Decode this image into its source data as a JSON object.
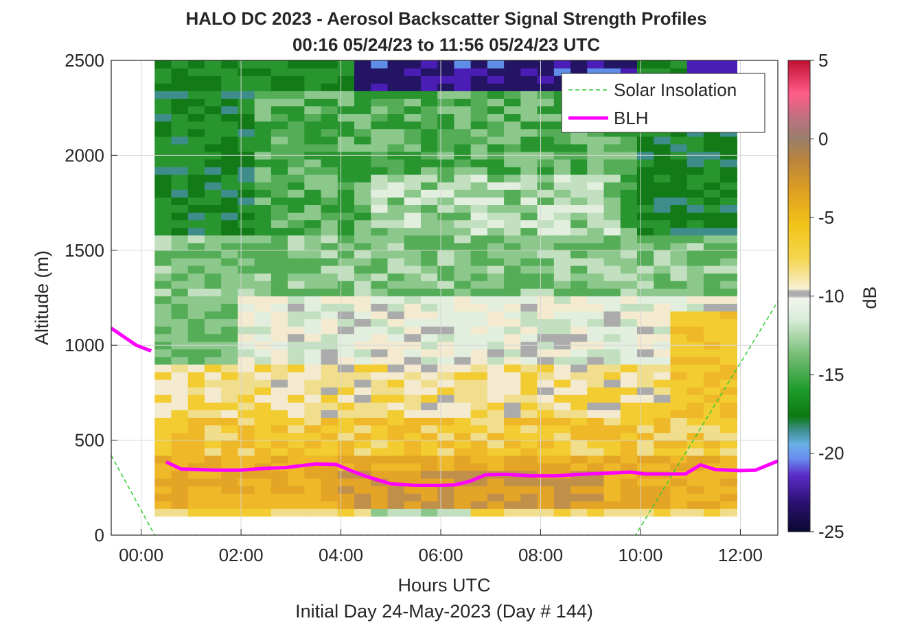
{
  "chart_data": {
    "type": "heatmap",
    "title": "HALO DC 2023 - Aerosol Backscatter Signal Strength Profiles",
    "subtitle": "00:16 05/24/23 to 11:56 05/24/23  UTC",
    "xlabel": "Hours UTC",
    "xlabel2": "Initial Day 24-May-2023 (Day # 144)",
    "ylabel": "Altitude (m)",
    "colorbar_label": "dB",
    "xlim": [
      -0.6,
      12.75
    ],
    "ylim": [
      0,
      2500
    ],
    "clim": [
      -25,
      5
    ],
    "grid": true,
    "legend_position": "top-right",
    "x_ticks": [
      {
        "value": 0,
        "label": "00:00"
      },
      {
        "value": 2,
        "label": "02:00"
      },
      {
        "value": 4,
        "label": "04:00"
      },
      {
        "value": 6,
        "label": "06:00"
      },
      {
        "value": 8,
        "label": "08:00"
      },
      {
        "value": 10,
        "label": "10:00"
      },
      {
        "value": 12,
        "label": "12:00"
      }
    ],
    "y_ticks": [
      {
        "value": 0,
        "label": "0"
      },
      {
        "value": 500,
        "label": "500"
      },
      {
        "value": 1000,
        "label": "1000"
      },
      {
        "value": 1500,
        "label": "1500"
      },
      {
        "value": 2000,
        "label": "2000"
      },
      {
        "value": 2500,
        "label": "2500"
      }
    ],
    "colorbar_ticks": [
      {
        "value": 5,
        "label": "5"
      },
      {
        "value": 0,
        "label": "0"
      },
      {
        "value": -5,
        "label": "-5"
      },
      {
        "value": -10,
        "label": "-10"
      },
      {
        "value": -15,
        "label": "-15"
      },
      {
        "value": -20,
        "label": "-20"
      },
      {
        "value": -25,
        "label": "-25"
      }
    ],
    "heatmap": {
      "x_start": 0.27,
      "x_end": 11.93,
      "columns": 35,
      "y_start": 100,
      "y_end": 2500,
      "rows": 60
    },
    "series": [
      {
        "name": "Solar Insolation",
        "color": "#33cc33",
        "style": "dashed",
        "x": [
          -0.6,
          0.27,
          9.9,
          12.75
        ],
        "y": [
          420,
          0,
          0,
          1230
        ]
      },
      {
        "name": "BLH",
        "color": "#ff00ff",
        "style": "solid",
        "x": [
          -0.6,
          -0.1,
          0.2
        ],
        "y": [
          1090,
          1000,
          970
        ]
      },
      {
        "name": "",
        "color": "#ff00ff",
        "style": "solid",
        "x": [
          0.5,
          0.8,
          1.5,
          2.0,
          2.5,
          2.9,
          3.5,
          3.9,
          4.2,
          4.5,
          5.0,
          5.5,
          6.0,
          6.3,
          6.6,
          6.9,
          7.3,
          7.8,
          8.3,
          8.8,
          9.3,
          9.8,
          10.1,
          10.6,
          10.9,
          11.2,
          11.5,
          12.0,
          12.3,
          12.75
        ],
        "y": [
          385,
          348,
          342,
          342,
          352,
          356,
          375,
          372,
          340,
          310,
          270,
          262,
          262,
          265,
          285,
          318,
          320,
          312,
          312,
          320,
          326,
          332,
          322,
          322,
          322,
          370,
          345,
          340,
          342,
          390
        ]
      }
    ]
  }
}
